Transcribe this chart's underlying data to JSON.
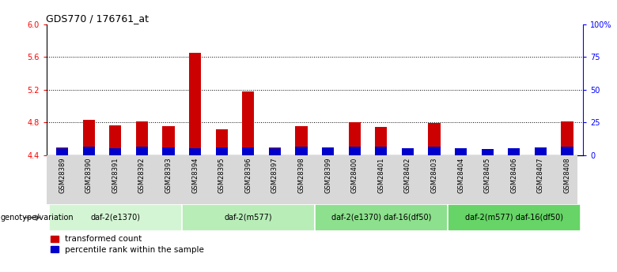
{
  "title": "GDS770 / 176761_at",
  "samples": [
    "GSM28389",
    "GSM28390",
    "GSM28391",
    "GSM28392",
    "GSM28393",
    "GSM28394",
    "GSM28395",
    "GSM28396",
    "GSM28397",
    "GSM28398",
    "GSM28399",
    "GSM28400",
    "GSM28401",
    "GSM28402",
    "GSM28403",
    "GSM28404",
    "GSM28405",
    "GSM28406",
    "GSM28407",
    "GSM28408"
  ],
  "red_values": [
    4.49,
    4.83,
    4.76,
    4.81,
    4.75,
    5.65,
    4.72,
    5.18,
    4.49,
    4.75,
    4.47,
    4.8,
    4.74,
    4.45,
    4.79,
    4.46,
    4.43,
    4.43,
    4.47,
    4.81
  ],
  "blue_values": [
    0.08,
    0.1,
    0.08,
    0.1,
    0.09,
    0.08,
    0.09,
    0.09,
    0.08,
    0.1,
    0.09,
    0.1,
    0.1,
    0.08,
    0.1,
    0.08,
    0.07,
    0.08,
    0.09,
    0.1
  ],
  "baseline": 4.4,
  "ylim": [
    4.4,
    6.0
  ],
  "yticks_left": [
    4.4,
    4.8,
    5.2,
    5.6,
    6.0
  ],
  "yticks_right": [
    0,
    25,
    50,
    75,
    100
  ],
  "ytick_labels_right": [
    "0",
    "25",
    "50",
    "75",
    "100%"
  ],
  "groups": [
    {
      "label": "daf-2(e1370)",
      "start": 0,
      "end": 5
    },
    {
      "label": "daf-2(m577)",
      "start": 5,
      "end": 10
    },
    {
      "label": "daf-2(e1370) daf-16(df50)",
      "start": 10,
      "end": 15
    },
    {
      "label": "daf-2(m577) daf-16(df50)",
      "start": 15,
      "end": 20
    }
  ],
  "group_colors": [
    "#d4f5d4",
    "#b8edb8",
    "#8de08d",
    "#66d466"
  ],
  "bar_color_red": "#cc0000",
  "bar_color_blue": "#0000cc",
  "bar_width": 0.45,
  "genotype_label": "genotype/variation",
  "legend_red": "transformed count",
  "legend_blue": "percentile rank within the sample",
  "xtick_bg": "#d8d8d8",
  "grid_dotline_color": "#888888"
}
